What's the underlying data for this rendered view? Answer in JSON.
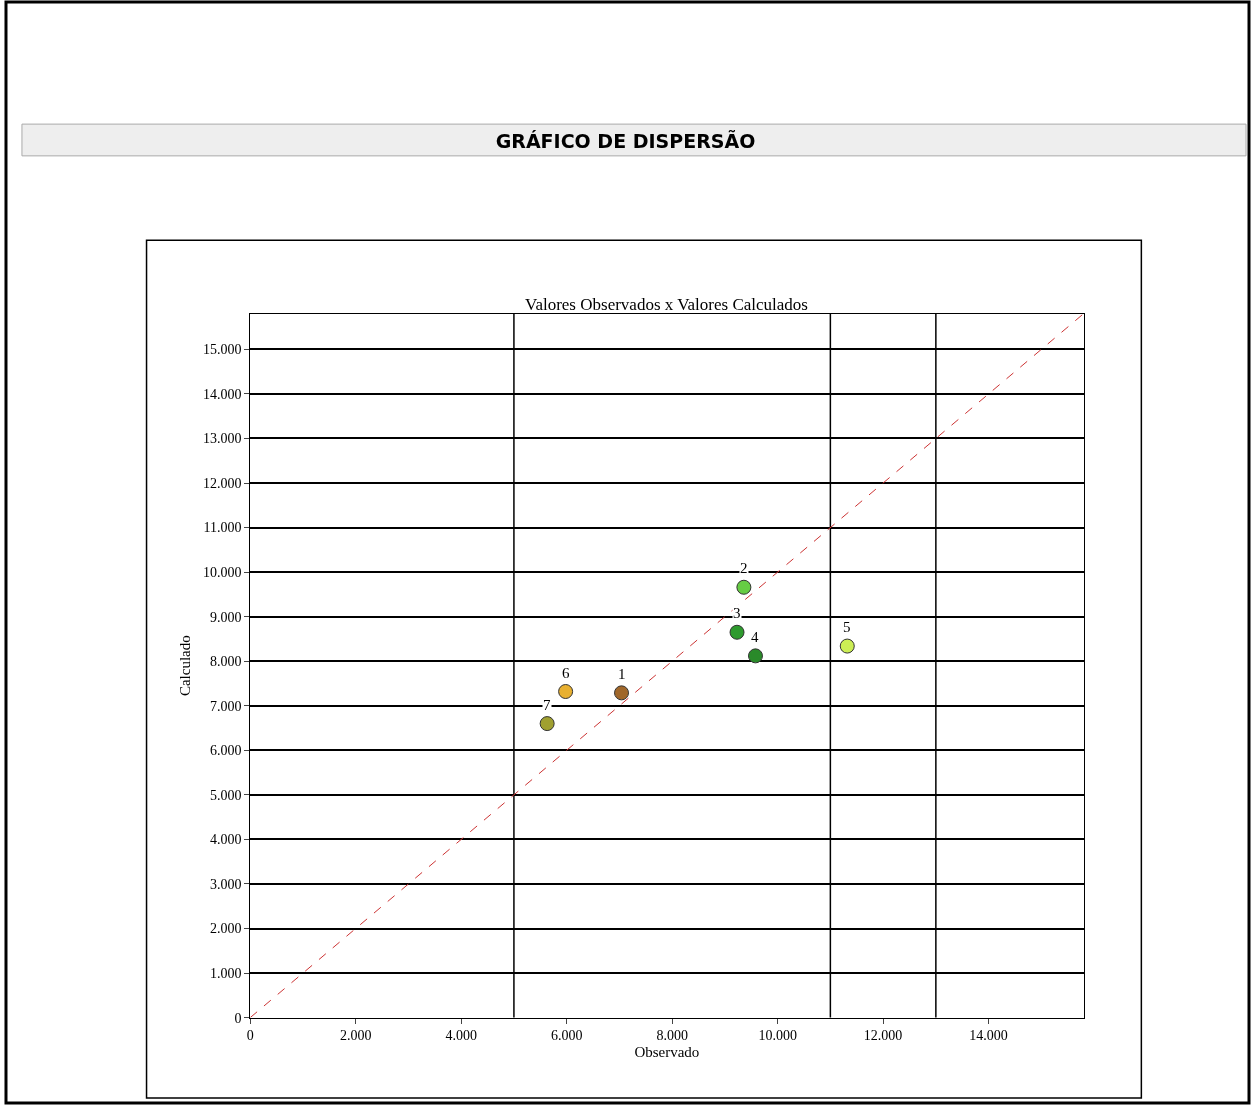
{
  "chart_data": {
    "type": "scatter",
    "title": "GRÁFICO DE DISPERSÃO",
    "subtitle": "Valores Observados x Valores Calculados",
    "xlabel": "Observado",
    "ylabel": "Calculado",
    "series": [
      {
        "x": [
          7040,
          9360,
          9230,
          9580,
          11320,
          5980,
          5630
        ],
        "values": [
          7290,
          9660,
          8650,
          8120,
          8340,
          7320,
          6600
        ],
        "colors": [
          "#a0672a",
          "#66cc44",
          "#2e9a2e",
          "#2a8a2a",
          "#ccee55",
          "#e8b030",
          "#a0a030"
        ],
        "marker": "circle"
      },
      {
        "type": "line",
        "x": [
          0,
          15800
        ],
        "values": [
          0,
          15800
        ],
        "color": "#cc3333",
        "line_style": "dashed",
        "marker": "none"
      }
    ],
    "annotations": [
      {
        "text": "1",
        "x": 7040,
        "y": 7290
      },
      {
        "text": "2",
        "x": 9360,
        "y": 9660
      },
      {
        "text": "3",
        "x": 9230,
        "y": 8650
      },
      {
        "text": "4",
        "x": 9580,
        "y": 8120
      },
      {
        "text": "5",
        "x": 11320,
        "y": 8340
      },
      {
        "text": "6",
        "x": 5980,
        "y": 7320
      },
      {
        "text": "7",
        "x": 5630,
        "y": 6600
      }
    ],
    "ref_lines": [
      {
        "axis": "x",
        "value": 5000,
        "color": "#000000"
      },
      {
        "axis": "x",
        "value": 11000,
        "color": "#000000"
      },
      {
        "axis": "x",
        "value": 13000,
        "color": "#000000"
      }
    ],
    "xlim": [
      0,
      15800
    ],
    "ylim": [
      0,
      15800
    ],
    "xticks": [
      0,
      {
        "value": 2000,
        "label": "2.000"
      },
      {
        "value": 4000,
        "label": "4.000"
      },
      {
        "value": 6000,
        "label": "6.000"
      },
      {
        "value": 8000,
        "label": "8.000"
      },
      {
        "value": 10000,
        "label": "10.000"
      },
      {
        "value": 12000,
        "label": "12.000"
      },
      {
        "value": 14000,
        "label": "14.000"
      }
    ],
    "yticks": [
      0,
      {
        "value": 1000,
        "label": "1.000"
      },
      {
        "value": 2000,
        "label": "2.000"
      },
      {
        "value": 3000,
        "label": "3.000"
      },
      {
        "value": 4000,
        "label": "4.000"
      },
      {
        "value": 5000,
        "label": "5.000"
      },
      {
        "value": 6000,
        "label": "6.000"
      },
      {
        "value": 7000,
        "label": "7.000"
      },
      {
        "value": 8000,
        "label": "8.000"
      },
      {
        "value": 9000,
        "label": "9.000"
      },
      {
        "value": 10000,
        "label": "10.000"
      },
      {
        "value": 11000,
        "label": "11.000"
      },
      {
        "value": 12000,
        "label": "12.000"
      },
      {
        "value": 13000,
        "label": "13.000"
      },
      {
        "value": 14000,
        "label": "14.000"
      },
      {
        "value": 15000,
        "label": "15.000"
      }
    ],
    "grid": "y"
  }
}
